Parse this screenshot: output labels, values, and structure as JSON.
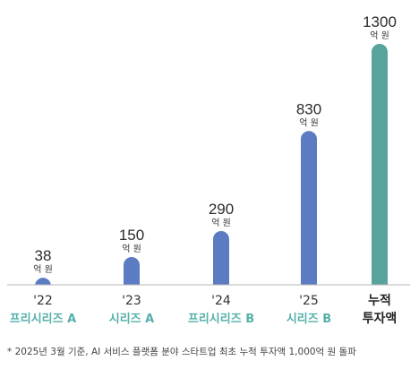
{
  "chart_data": {
    "type": "bar",
    "categories": [
      "'22",
      "'23",
      "'24",
      "'25",
      "누적 투자액"
    ],
    "series_labels": [
      "프리시리즈 A",
      "시리즈 A",
      "프리시리즈 B",
      "시리즈 B"
    ],
    "values": [
      38,
      150,
      290,
      830,
      1300
    ],
    "unit_label": "억 원",
    "cumulative_label_line1": "누적",
    "cumulative_label_line2": "투자액",
    "ylim": [
      0,
      1300
    ],
    "grid": false,
    "colors": {
      "bar": "#5b7bc2",
      "cumulative_bar": "#58a39c",
      "series_label": "#55b0aa",
      "baseline": "#b5b5b5"
    }
  },
  "footnote": "*  2025년 3월 기준, AI 서비스 플랫폼 분야 스타트업 최초 누적 투자액 1,000억 원 돌파"
}
